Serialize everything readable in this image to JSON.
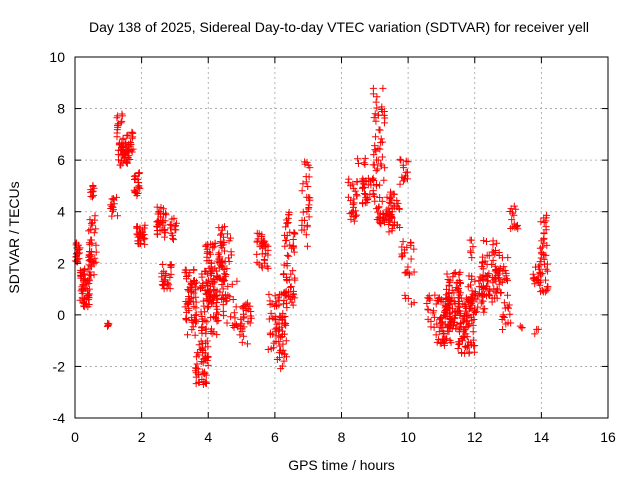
{
  "chart_data": {
    "type": "scatter",
    "title": "Day 138 of 2025, Sidereal Day-to-day VTEC variation (SDTVAR) for receiver yell",
    "xlabel": "GPS time / hours",
    "ylabel": "SDTVAR / TECUs",
    "xlim": [
      0,
      16
    ],
    "ylim": [
      -4,
      10
    ],
    "xticks": [
      "0",
      "2",
      "4",
      "6",
      "8",
      "10",
      "12",
      "14",
      "16"
    ],
    "yticks": [
      "-4",
      "-2",
      "0",
      "2",
      "4",
      "6",
      "8",
      "10"
    ],
    "grid": true,
    "marker": "+",
    "color": "#ff0000",
    "clusters": [
      {
        "x": [
          0.0,
          0.15
        ],
        "y": [
          2.0,
          2.8
        ],
        "n": 20
      },
      {
        "x": [
          0.15,
          0.45
        ],
        "y": [
          0.3,
          1.8
        ],
        "n": 60
      },
      {
        "x": [
          0.4,
          0.65
        ],
        "y": [
          1.5,
          3.9
        ],
        "n": 40
      },
      {
        "x": [
          0.45,
          0.6
        ],
        "y": [
          4.5,
          5.1
        ],
        "n": 10
      },
      {
        "x": [
          0.95,
          1.05
        ],
        "y": [
          -0.45,
          -0.3
        ],
        "n": 5
      },
      {
        "x": [
          1.05,
          1.3
        ],
        "y": [
          3.8,
          4.6
        ],
        "n": 15
      },
      {
        "x": [
          1.25,
          1.45
        ],
        "y": [
          6.8,
          7.8
        ],
        "n": 15
      },
      {
        "x": [
          1.3,
          1.65
        ],
        "y": [
          5.8,
          6.7
        ],
        "n": 45
      },
      {
        "x": [
          1.55,
          1.75
        ],
        "y": [
          6.3,
          7.1
        ],
        "n": 15
      },
      {
        "x": [
          1.75,
          1.95
        ],
        "y": [
          4.6,
          5.6
        ],
        "n": 20
      },
      {
        "x": [
          1.85,
          2.1
        ],
        "y": [
          2.7,
          3.5
        ],
        "n": 30
      },
      {
        "x": [
          2.45,
          2.75
        ],
        "y": [
          3.0,
          4.2
        ],
        "n": 35
      },
      {
        "x": [
          2.6,
          2.9
        ],
        "y": [
          1.0,
          2.0
        ],
        "n": 25
      },
      {
        "x": [
          2.85,
          3.05
        ],
        "y": [
          2.8,
          3.9
        ],
        "n": 15
      },
      {
        "x": [
          3.3,
          3.65
        ],
        "y": [
          -0.8,
          1.8
        ],
        "n": 60
      },
      {
        "x": [
          3.6,
          4.0
        ],
        "y": [
          -2.7,
          -1.0
        ],
        "n": 50
      },
      {
        "x": [
          3.75,
          4.3
        ],
        "y": [
          -0.8,
          1.7
        ],
        "n": 70
      },
      {
        "x": [
          3.9,
          4.45
        ],
        "y": [
          0.5,
          2.8
        ],
        "n": 70
      },
      {
        "x": [
          4.3,
          4.7
        ],
        "y": [
          1.4,
          3.6
        ],
        "n": 35
      },
      {
        "x": [
          4.4,
          4.9
        ],
        "y": [
          -0.5,
          1.4
        ],
        "n": 30
      },
      {
        "x": [
          4.95,
          5.3
        ],
        "y": [
          -1.2,
          0.5
        ],
        "n": 30
      },
      {
        "x": [
          5.45,
          5.8
        ],
        "y": [
          1.8,
          3.2
        ],
        "n": 35
      },
      {
        "x": [
          5.8,
          6.0
        ],
        "y": [
          -1.5,
          0.9
        ],
        "n": 15
      },
      {
        "x": [
          6.0,
          6.35
        ],
        "y": [
          -2.1,
          1.0
        ],
        "n": 60
      },
      {
        "x": [
          6.25,
          6.6
        ],
        "y": [
          0.2,
          3.5
        ],
        "n": 50
      },
      {
        "x": [
          6.35,
          6.6
        ],
        "y": [
          3.5,
          4.0
        ],
        "n": 8
      },
      {
        "x": [
          6.8,
          7.05
        ],
        "y": [
          2.6,
          6.0
        ],
        "n": 30
      },
      {
        "x": [
          8.2,
          8.5
        ],
        "y": [
          3.6,
          5.3
        ],
        "n": 25
      },
      {
        "x": [
          8.45,
          8.75
        ],
        "y": [
          5.8,
          6.1
        ],
        "n": 5
      },
      {
        "x": [
          8.6,
          9.0
        ],
        "y": [
          4.2,
          5.3
        ],
        "n": 35
      },
      {
        "x": [
          8.95,
          9.3
        ],
        "y": [
          5.0,
          8.8
        ],
        "n": 45
      },
      {
        "x": [
          9.05,
          9.55
        ],
        "y": [
          3.5,
          4.6
        ],
        "n": 40
      },
      {
        "x": [
          9.4,
          9.75
        ],
        "y": [
          3.2,
          4.8
        ],
        "n": 30
      },
      {
        "x": [
          9.75,
          10.0
        ],
        "y": [
          5.0,
          6.1
        ],
        "n": 15
      },
      {
        "x": [
          9.8,
          10.2
        ],
        "y": [
          1.5,
          3.0
        ],
        "n": 20
      },
      {
        "x": [
          9.9,
          10.2
        ],
        "y": [
          0.4,
          0.9
        ],
        "n": 5
      },
      {
        "x": [
          10.55,
          10.85
        ],
        "y": [
          -0.5,
          0.8
        ],
        "n": 15
      },
      {
        "x": [
          10.8,
          11.3
        ],
        "y": [
          -1.2,
          0.7
        ],
        "n": 60
      },
      {
        "x": [
          11.1,
          11.6
        ],
        "y": [
          -0.6,
          1.7
        ],
        "n": 80
      },
      {
        "x": [
          11.5,
          12.0
        ],
        "y": [
          -1.5,
          0.8
        ],
        "n": 80
      },
      {
        "x": [
          11.8,
          12.3
        ],
        "y": [
          0.0,
          1.6
        ],
        "n": 40
      },
      {
        "x": [
          11.8,
          12.0
        ],
        "y": [
          2.0,
          2.9
        ],
        "n": 6
      },
      {
        "x": [
          12.2,
          12.75
        ],
        "y": [
          0.5,
          2.9
        ],
        "n": 60
      },
      {
        "x": [
          12.6,
          13.0
        ],
        "y": [
          0.6,
          2.3
        ],
        "n": 30
      },
      {
        "x": [
          12.8,
          13.1
        ],
        "y": [
          -0.6,
          0.8
        ],
        "n": 15
      },
      {
        "x": [
          13.05,
          13.3
        ],
        "y": [
          3.3,
          4.3
        ],
        "n": 15
      },
      {
        "x": [
          13.3,
          13.5
        ],
        "y": [
          -0.7,
          -0.4
        ],
        "n": 3
      },
      {
        "x": [
          13.75,
          14.0
        ],
        "y": [
          1.2,
          1.9
        ],
        "n": 20
      },
      {
        "x": [
          13.8,
          13.95
        ],
        "y": [
          -0.8,
          -0.5
        ],
        "n": 3
      },
      {
        "x": [
          13.95,
          14.2
        ],
        "y": [
          0.8,
          3.9
        ],
        "n": 40
      }
    ]
  }
}
